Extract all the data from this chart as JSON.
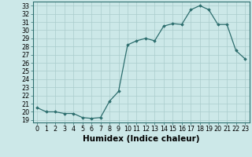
{
  "x": [
    0,
    1,
    2,
    3,
    4,
    5,
    6,
    7,
    8,
    9,
    10,
    11,
    12,
    13,
    14,
    15,
    16,
    17,
    18,
    19,
    20,
    21,
    22,
    23
  ],
  "y": [
    20.5,
    20.0,
    20.0,
    19.8,
    19.8,
    19.3,
    19.2,
    19.3,
    21.3,
    22.5,
    28.2,
    28.7,
    29.0,
    28.7,
    30.5,
    30.8,
    30.7,
    32.5,
    33.0,
    32.5,
    30.7,
    30.7,
    27.5,
    26.5
  ],
  "xlabel": "Humidex (Indice chaleur)",
  "xlim": [
    -0.5,
    23.5
  ],
  "ylim": [
    18.7,
    33.5
  ],
  "yticks": [
    19,
    20,
    21,
    22,
    23,
    24,
    25,
    26,
    27,
    28,
    29,
    30,
    31,
    32,
    33
  ],
  "xticks": [
    0,
    1,
    2,
    3,
    4,
    5,
    6,
    7,
    8,
    9,
    10,
    11,
    12,
    13,
    14,
    15,
    16,
    17,
    18,
    19,
    20,
    21,
    22,
    23
  ],
  "line_color": "#2d6e6e",
  "marker_color": "#2d6e6e",
  "bg_color": "#cce8e8",
  "grid_color": "#aacccc",
  "tick_label_fontsize": 5.8,
  "xlabel_fontsize": 7.5,
  "marker_size": 1.8,
  "line_width": 0.9
}
